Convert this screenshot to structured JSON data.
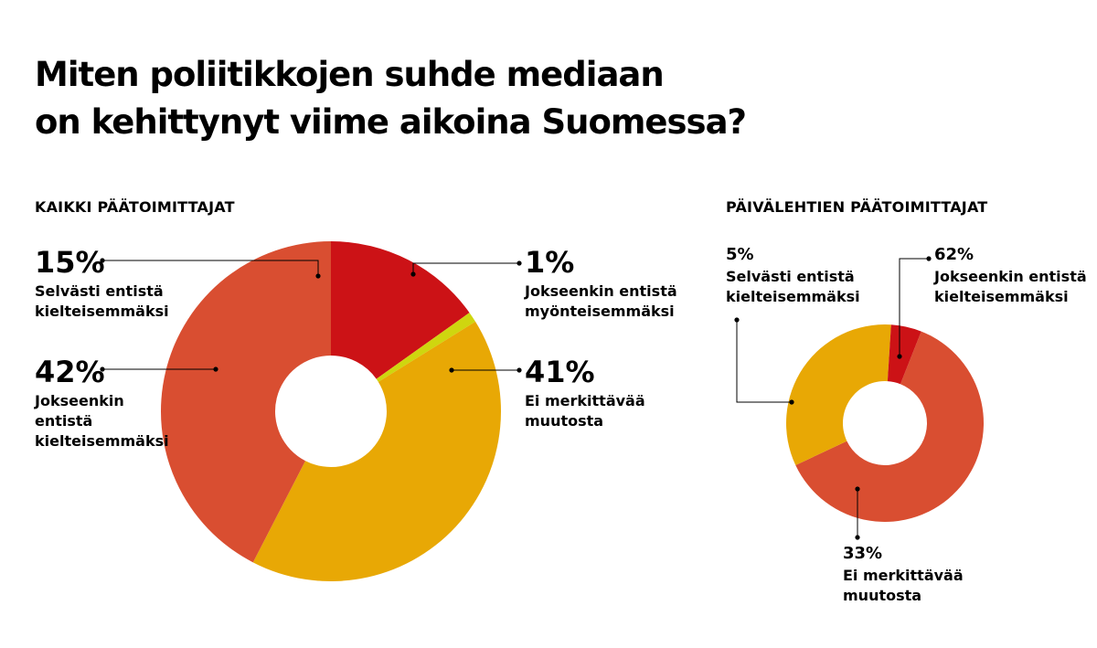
{
  "chart_data": [
    {
      "type": "pie",
      "title": "Miten poliitikkojen suhde mediaan on kehittynyt viime aikoina Suomessa?",
      "title_lines": [
        "Miten poliitikkojen suhde mediaan",
        "on kehittynyt viime aikoina Suomessa?"
      ],
      "subtitle": "KAIKKI PÄÄTOIMITTAJAT",
      "donut": true,
      "categories": [
        "Selvästi entistä kielteisemmäksi",
        "Jokseenkin entistä myönteisemmäksi",
        "Ei merkittävää muutosta",
        "Jokseenkin entistä kielteisemmäksi"
      ],
      "values": [
        15,
        1,
        41,
        42
      ],
      "value_labels": [
        "15%",
        "1%",
        "41%",
        "42%"
      ],
      "label_lines": [
        [
          "Selvästi entistä",
          "kielteisemmäksi"
        ],
        [
          "Jokseenkin entistä",
          "myönteisemmäksi"
        ],
        [
          "Ei merkittävää",
          "muutosta"
        ],
        [
          "Jokseenkin",
          "entistä",
          "kielteisemmäksi"
        ]
      ],
      "colors": [
        "#cc1216",
        "#cfd60f",
        "#e8a805",
        "#d94e31"
      ]
    },
    {
      "type": "pie",
      "subtitle": "PÄIVÄLEHTIEN PÄÄTOIMITTAJAT",
      "donut": true,
      "categories": [
        "Jokseenkin entistä kielteisemmäksi",
        "Ei merkittävää muutosta",
        "Selvästi entistä kielteisemmäksi"
      ],
      "values": [
        62,
        33,
        5
      ],
      "value_labels": [
        "62%",
        "33%",
        "5%"
      ],
      "label_lines": [
        [
          "Jokseenkin entistä",
          "kielteisemmäksi"
        ],
        [
          "Ei merkittävää",
          "muutosta"
        ],
        [
          "Selvästi entistä",
          "kielteisemmäksi"
        ]
      ],
      "colors": [
        "#d94e31",
        "#e8a805",
        "#cc1216"
      ]
    }
  ]
}
